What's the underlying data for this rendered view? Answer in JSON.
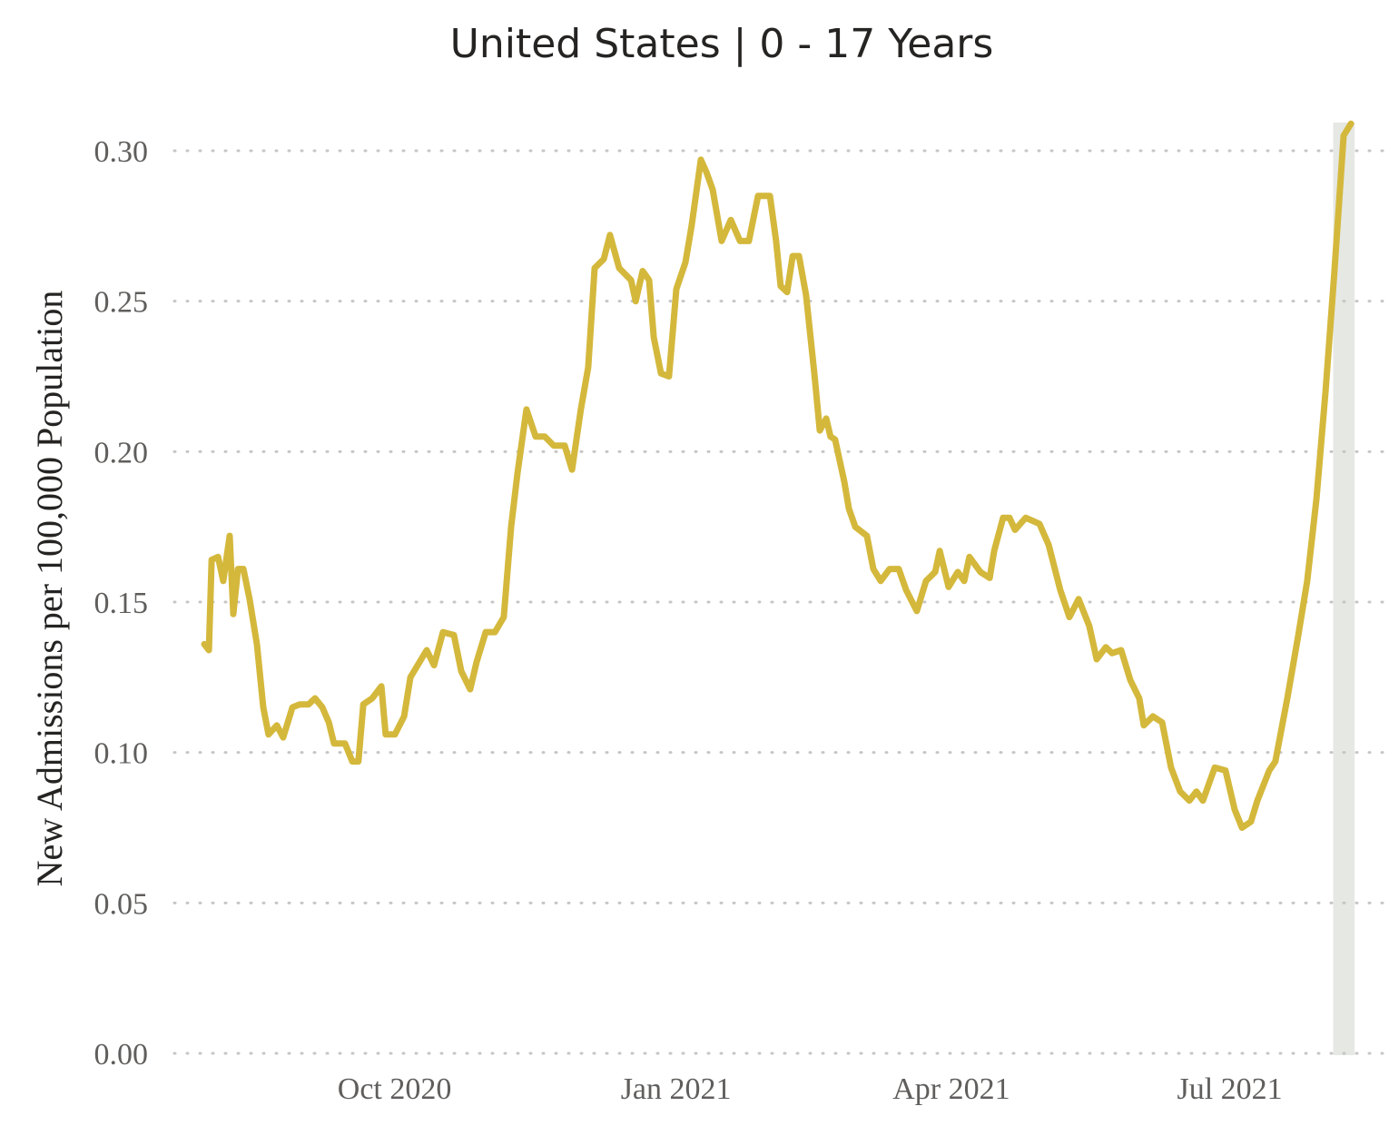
{
  "chart_data": {
    "type": "line",
    "title": "United States | 0 - 17 Years",
    "xlabel": "",
    "ylabel": "New Admissions per 100,000 Population",
    "x_unit": "days since 2020-08-01",
    "xlim": [
      0,
      376
    ],
    "ylim": [
      0,
      0.3
    ],
    "yticks": [
      {
        "value": 0.0,
        "label": "0.00"
      },
      {
        "value": 0.05,
        "label": "0.05"
      },
      {
        "value": 0.1,
        "label": "0.10"
      },
      {
        "value": 0.15,
        "label": "0.15"
      },
      {
        "value": 0.2,
        "label": "0.20"
      },
      {
        "value": 0.25,
        "label": "0.25"
      },
      {
        "value": 0.3,
        "label": "0.30"
      }
    ],
    "xticks": [
      {
        "value": 61,
        "label": "Oct 2020"
      },
      {
        "value": 153,
        "label": "Jan 2021"
      },
      {
        "value": 243,
        "label": "Apr 2021"
      },
      {
        "value": 334,
        "label": "Jul 2021"
      }
    ],
    "grid": "horizontal dotted",
    "line_color": "#d4b83c",
    "highlight_color": "#e6e8e4",
    "highlight_x": [
      369,
      376
    ],
    "series": [
      {
        "name": "0 - 17 Years",
        "points": [
          [
            0,
            0.136
          ],
          [
            1.5,
            0.134
          ],
          [
            2.4,
            0.164
          ],
          [
            4.5,
            0.165
          ],
          [
            6.2,
            0.157
          ],
          [
            8.3,
            0.172
          ],
          [
            9.5,
            0.146
          ],
          [
            11,
            0.161
          ],
          [
            12.8,
            0.161
          ],
          [
            14.8,
            0.151
          ],
          [
            17.2,
            0.136
          ],
          [
            19.3,
            0.115
          ],
          [
            21,
            0.106
          ],
          [
            23.7,
            0.109
          ],
          [
            25.8,
            0.105
          ],
          [
            28.8,
            0.115
          ],
          [
            31.2,
            0.116
          ],
          [
            34.1,
            0.116
          ],
          [
            36.2,
            0.118
          ],
          [
            38.6,
            0.115
          ],
          [
            40.7,
            0.11
          ],
          [
            42.4,
            0.103
          ],
          [
            46,
            0.103
          ],
          [
            48.4,
            0.097
          ],
          [
            50.4,
            0.097
          ],
          [
            52,
            0.116
          ],
          [
            54.9,
            0.118
          ],
          [
            57.9,
            0.122
          ],
          [
            59.3,
            0.106
          ],
          [
            62.3,
            0.106
          ],
          [
            65.3,
            0.112
          ],
          [
            67.4,
            0.125
          ],
          [
            72.7,
            0.134
          ],
          [
            75.1,
            0.129
          ],
          [
            78,
            0.14
          ],
          [
            81.6,
            0.139
          ],
          [
            84,
            0.127
          ],
          [
            86.9,
            0.121
          ],
          [
            89,
            0.13
          ],
          [
            92,
            0.14
          ],
          [
            95,
            0.14
          ],
          [
            97.9,
            0.145
          ],
          [
            100.3,
            0.175
          ],
          [
            102.4,
            0.193
          ],
          [
            105.3,
            0.214
          ],
          [
            108.3,
            0.205
          ],
          [
            111.3,
            0.205
          ],
          [
            114.2,
            0.202
          ],
          [
            117.8,
            0.202
          ],
          [
            120.2,
            0.194
          ],
          [
            123.1,
            0.214
          ],
          [
            125.5,
            0.228
          ],
          [
            127.6,
            0.261
          ],
          [
            130.6,
            0.264
          ],
          [
            132.6,
            0.272
          ],
          [
            135.6,
            0.261
          ],
          [
            139.5,
            0.257
          ],
          [
            141,
            0.25
          ],
          [
            143.3,
            0.26
          ],
          [
            145.4,
            0.257
          ],
          [
            146.9,
            0.238
          ],
          [
            149.3,
            0.226
          ],
          [
            151.9,
            0.225
          ],
          [
            154.3,
            0.254
          ],
          [
            157.3,
            0.263
          ],
          [
            159.3,
            0.275
          ],
          [
            162.3,
            0.297
          ],
          [
            164.1,
            0.293
          ],
          [
            166.2,
            0.287
          ],
          [
            169.1,
            0.27
          ],
          [
            172.1,
            0.277
          ],
          [
            175.1,
            0.27
          ],
          [
            178,
            0.27
          ],
          [
            181,
            0.285
          ],
          [
            184.9,
            0.285
          ],
          [
            186.9,
            0.27
          ],
          [
            188.4,
            0.255
          ],
          [
            190.5,
            0.253
          ],
          [
            192.3,
            0.265
          ],
          [
            194.4,
            0.265
          ],
          [
            196.7,
            0.252
          ],
          [
            199.4,
            0.226
          ],
          [
            201.2,
            0.207
          ],
          [
            203.3,
            0.211
          ],
          [
            204.7,
            0.205
          ],
          [
            206.2,
            0.204
          ],
          [
            209.2,
            0.19
          ],
          [
            210.7,
            0.181
          ],
          [
            212.8,
            0.175
          ],
          [
            216.6,
            0.172
          ],
          [
            218.7,
            0.161
          ],
          [
            221.1,
            0.157
          ],
          [
            224,
            0.161
          ],
          [
            227,
            0.161
          ],
          [
            229.4,
            0.154
          ],
          [
            232.9,
            0.147
          ],
          [
            235.9,
            0.157
          ],
          [
            238.9,
            0.16
          ],
          [
            240.4,
            0.167
          ],
          [
            243.3,
            0.155
          ],
          [
            246.3,
            0.16
          ],
          [
            248.4,
            0.157
          ],
          [
            250.1,
            0.165
          ],
          [
            253.7,
            0.16
          ],
          [
            256.7,
            0.158
          ],
          [
            258.2,
            0.167
          ],
          [
            261.1,
            0.178
          ],
          [
            263.2,
            0.178
          ],
          [
            265,
            0.174
          ],
          [
            268.5,
            0.178
          ],
          [
            273,
            0.176
          ],
          [
            276,
            0.169
          ],
          [
            279.8,
            0.154
          ],
          [
            282.8,
            0.145
          ],
          [
            285.8,
            0.151
          ],
          [
            289.3,
            0.142
          ],
          [
            291.7,
            0.131
          ],
          [
            294.7,
            0.135
          ],
          [
            296.7,
            0.133
          ],
          [
            299.7,
            0.134
          ],
          [
            302.7,
            0.124
          ],
          [
            305.6,
            0.118
          ],
          [
            307.1,
            0.109
          ],
          [
            310.1,
            0.112
          ],
          [
            313.1,
            0.11
          ],
          [
            316,
            0.095
          ],
          [
            319,
            0.087
          ],
          [
            322,
            0.084
          ],
          [
            324.3,
            0.087
          ],
          [
            326.4,
            0.084
          ],
          [
            330.3,
            0.095
          ],
          [
            333.8,
            0.094
          ],
          [
            336.8,
            0.081
          ],
          [
            339.2,
            0.075
          ],
          [
            342.1,
            0.077
          ],
          [
            344.2,
            0.084
          ],
          [
            348.1,
            0.094
          ],
          [
            350.1,
            0.097
          ],
          [
            354,
            0.118
          ],
          [
            357.6,
            0.139
          ],
          [
            360.5,
            0.157
          ],
          [
            363.5,
            0.184
          ],
          [
            366.5,
            0.22
          ],
          [
            369.4,
            0.26
          ],
          [
            372.4,
            0.305
          ],
          [
            374.8,
            0.309
          ]
        ]
      }
    ]
  }
}
